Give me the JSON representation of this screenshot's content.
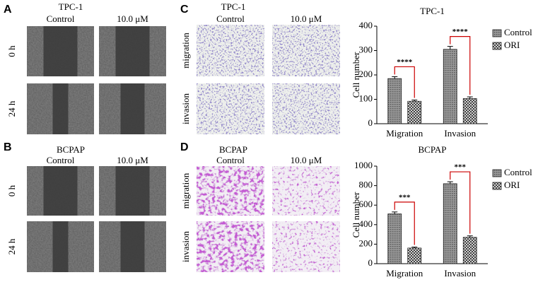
{
  "panels": [
    {
      "letter": "A",
      "title": "TPC-1",
      "columns": [
        "Control",
        "10.0 μM"
      ],
      "rows": [
        "0 h",
        "24 h"
      ]
    },
    {
      "letter": "B",
      "title": "BCPAP",
      "columns": [
        "Control",
        "10.0 μM"
      ],
      "rows": [
        "0 h",
        "24 h"
      ]
    },
    {
      "letter": "C",
      "title": "TPC-1",
      "columns": [
        "Control",
        "10.0 μM"
      ],
      "rows": [
        "migration",
        "invasion"
      ]
    },
    {
      "letter": "D",
      "title": "BCPAP",
      "columns": [
        "Control",
        "10.0 μM"
      ],
      "rows": [
        "migration",
        "invasion"
      ]
    }
  ],
  "chart_data": [
    {
      "type": "bar",
      "title": "TPC-1",
      "y_label": "Cell number",
      "categories": [
        "Migration",
        "Invasion"
      ],
      "series": [
        {
          "name": "Control",
          "color": "#8c8c8c",
          "values": [
            185,
            305
          ],
          "errors": [
            8,
            12
          ]
        },
        {
          "name": "ORI",
          "color": "#ffffff",
          "values": [
            92,
            103
          ],
          "errors": [
            5,
            7
          ]
        }
      ],
      "annotations": [
        "****",
        "****"
      ],
      "ylim": [
        0,
        400
      ],
      "yticks": [
        0,
        100,
        200,
        300,
        400
      ]
    },
    {
      "type": "bar",
      "title": "BCPAP",
      "y_label": "Cell number",
      "categories": [
        "Migration",
        "Invasion"
      ],
      "series": [
        {
          "name": "Control",
          "color": "#8c8c8c",
          "values": [
            510,
            820
          ],
          "errors": [
            20,
            20
          ]
        },
        {
          "name": "ORI",
          "color": "#ffffff",
          "values": [
            160,
            270
          ],
          "errors": [
            10,
            15
          ]
        }
      ],
      "annotations": [
        "***",
        "***"
      ],
      "ylim": [
        0,
        1000
      ],
      "yticks": [
        0,
        200,
        400,
        600,
        800,
        1000
      ]
    }
  ]
}
